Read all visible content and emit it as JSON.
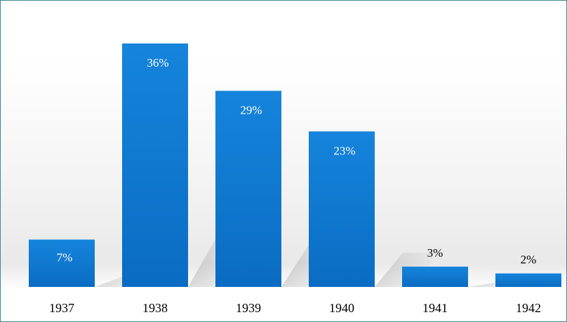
{
  "chart_data": {
    "type": "bar",
    "categories": [
      "1937",
      "1938",
      "1939",
      "1940",
      "1941",
      "1942"
    ],
    "values": [
      7,
      36,
      29,
      23,
      3,
      2
    ],
    "data_labels": [
      "7%",
      "36%",
      "29%",
      "23%",
      "3%",
      "2%"
    ],
    "title": "",
    "xlabel": "",
    "ylabel": "",
    "ylim": [
      0,
      40
    ],
    "grid": false,
    "legend": "none",
    "colors": {
      "bar": "#0a72c9",
      "bar_light": "#1a86dd",
      "label_inside": "#ffffff",
      "label_outside": "#000000",
      "border": "#3c8a94"
    }
  }
}
